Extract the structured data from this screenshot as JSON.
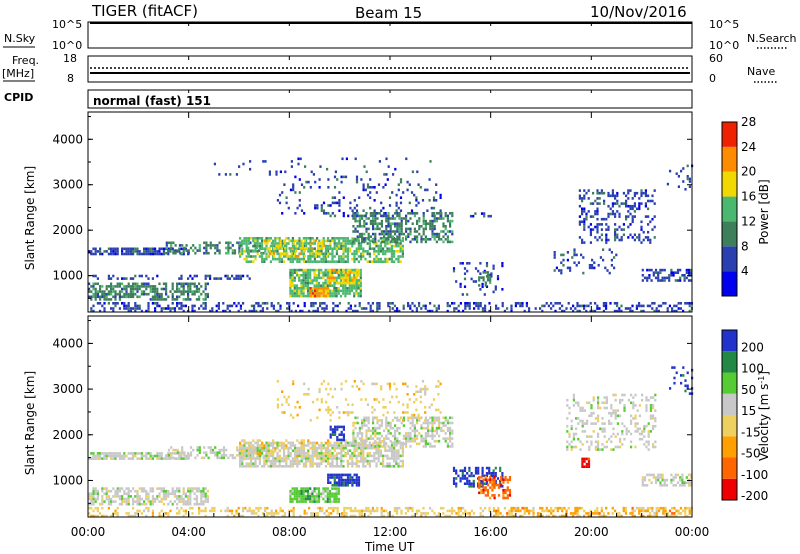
{
  "header": {
    "radar": "TIGER (fitACF)",
    "beam": "Beam 15",
    "date": "10/Nov/2016"
  },
  "top_panels": {
    "nsky_label": "N.Sky",
    "nsky_ticks": [
      "10^5",
      "10^0"
    ],
    "nsearch_label": "N.Search",
    "nsearch_ticks": [
      "10^5",
      "10^0"
    ],
    "freq_label": "Freq.",
    "freq_unit": "[MHz]",
    "freq_ticks": [
      "18",
      "8"
    ],
    "nave_label": "Nave",
    "nave_ticks": [
      "60",
      "0"
    ],
    "cpid_label": "CPID",
    "cpid_value": "normal (fast) 151"
  },
  "colors": {
    "power": [
      "#0000ee",
      "#2a3fb0",
      "#3d7f5a",
      "#4bb870",
      "#f0d800",
      "#ff8c00",
      "#ee2200"
    ],
    "velocity": [
      "#ee0000",
      "#ff6600",
      "#ffa000",
      "#eed060",
      "#c8c8c8",
      "#55cc33",
      "#228844",
      "#2233cc"
    ]
  },
  "chart_data": [
    {
      "type": "heatmap",
      "name": "power",
      "ylabel": "Slant Range [km]",
      "yticks": [
        "1000",
        "2000",
        "3000",
        "4000"
      ],
      "ylim": [
        200,
        4600
      ],
      "xlim_hours": [
        0,
        24
      ],
      "xticks": [
        "00:00",
        "04:00",
        "08:00",
        "12:00",
        "16:00",
        "20:00",
        "00:00"
      ],
      "colorbar": {
        "label": "Power [dB]",
        "range": [
          0,
          32
        ],
        "ticks": [
          "4",
          "8",
          "12",
          "16",
          "20",
          "24",
          "28"
        ]
      },
      "regions": [
        {
          "t0": 0,
          "t1": 24,
          "r0": 220,
          "r1": 420,
          "lvl": 1,
          "den": 0.38
        },
        {
          "t0": 0,
          "t1": 4.8,
          "r0": 480,
          "r1": 850,
          "lvl": 2,
          "den": 0.6
        },
        {
          "t0": 0,
          "t1": 6.5,
          "r0": 920,
          "r1": 1020,
          "lvl": 1,
          "den": 0.35
        },
        {
          "t0": 0,
          "t1": 4,
          "r0": 1450,
          "r1": 1620,
          "lvl": 1,
          "den": 0.75
        },
        {
          "t0": 3,
          "t1": 7,
          "r0": 1480,
          "r1": 1750,
          "lvl": 2,
          "den": 0.45
        },
        {
          "t0": 6,
          "t1": 12.5,
          "r0": 1300,
          "r1": 1850,
          "lvl": 3,
          "den": 0.7
        },
        {
          "t0": 7,
          "t1": 9.5,
          "r0": 1400,
          "r1": 1800,
          "lvl": 4,
          "den": 0.4
        },
        {
          "t0": 10.5,
          "t1": 14.5,
          "r0": 1750,
          "r1": 2400,
          "lvl": 2,
          "den": 0.55
        },
        {
          "t0": 7.5,
          "t1": 14,
          "r0": 2300,
          "r1": 3200,
          "lvl": 1,
          "den": 0.14
        },
        {
          "t0": 5,
          "t1": 14,
          "r0": 3200,
          "r1": 3600,
          "lvl": 1,
          "den": 0.07
        },
        {
          "t0": 8,
          "t1": 10.8,
          "r0": 550,
          "r1": 1150,
          "lvl": 3,
          "den": 0.85
        },
        {
          "t0": 8.8,
          "t1": 9.5,
          "r0": 550,
          "r1": 750,
          "lvl": 5,
          "den": 0.9
        },
        {
          "t0": 9.5,
          "t1": 10.8,
          "r0": 850,
          "r1": 1150,
          "lvl": 4,
          "den": 0.7
        },
        {
          "t0": 14.5,
          "t1": 16.5,
          "r0": 600,
          "r1": 1300,
          "lvl": 1,
          "den": 0.2
        },
        {
          "t0": 15.5,
          "t1": 16,
          "r0": 800,
          "r1": 1100,
          "lvl": 2,
          "den": 0.6
        },
        {
          "t0": 15,
          "t1": 16,
          "r0": 2300,
          "r1": 2450,
          "lvl": 1,
          "den": 0.4
        },
        {
          "t0": 19.5,
          "t1": 22.5,
          "r0": 1700,
          "r1": 2900,
          "lvl": 1,
          "den": 0.3
        },
        {
          "t0": 22,
          "t1": 24,
          "r0": 900,
          "r1": 1150,
          "lvl": 1,
          "den": 0.55
        },
        {
          "t0": 18.5,
          "t1": 21,
          "r0": 1050,
          "r1": 1600,
          "lvl": 1,
          "den": 0.18
        },
        {
          "t0": 23,
          "t1": 24,
          "r0": 2900,
          "r1": 3500,
          "lvl": 1,
          "den": 0.12
        }
      ]
    },
    {
      "type": "heatmap",
      "name": "velocity",
      "ylabel": "Slant Range [km]",
      "yticks": [
        "1000",
        "2000",
        "3000",
        "4000"
      ],
      "ylim": [
        200,
        4600
      ],
      "xlim_hours": [
        0,
        24
      ],
      "xticks": [
        "00:00",
        "04:00",
        "08:00",
        "12:00",
        "16:00",
        "20:00",
        "00:00"
      ],
      "xlabel": "Time UT",
      "colorbar": {
        "label": "Velocity [m s",
        "label_sup": "-1",
        "label_end": "]",
        "ticks": [
          "200",
          "100",
          "50",
          "15",
          "-15",
          "-50",
          "-100",
          "-200"
        ]
      },
      "regions": [
        {
          "t0": 0,
          "t1": 24,
          "r0": 220,
          "r1": 420,
          "lvl": 3,
          "den": 0.38
        },
        {
          "t0": 0,
          "t1": 4.8,
          "r0": 480,
          "r1": 850,
          "lvl": 4,
          "den": 0.6
        },
        {
          "t0": 0,
          "t1": 4,
          "r0": 1450,
          "r1": 1620,
          "lvl": 4,
          "den": 0.75
        },
        {
          "t0": 3,
          "t1": 7,
          "r0": 1480,
          "r1": 1750,
          "lvl": 4,
          "den": 0.45
        },
        {
          "t0": 6,
          "t1": 12.5,
          "r0": 1300,
          "r1": 1850,
          "lvl": 4,
          "den": 0.7
        },
        {
          "t0": 6,
          "t1": 11,
          "r0": 1400,
          "r1": 1900,
          "lvl": 3,
          "den": 0.25
        },
        {
          "t0": 10.5,
          "t1": 14.5,
          "r0": 1750,
          "r1": 2400,
          "lvl": 4,
          "den": 0.55
        },
        {
          "t0": 7.5,
          "t1": 14,
          "r0": 2300,
          "r1": 3200,
          "lvl": 3,
          "den": 0.14
        },
        {
          "t0": 8,
          "t1": 10,
          "r0": 550,
          "r1": 850,
          "lvl": 5,
          "den": 0.85
        },
        {
          "t0": 9.5,
          "t1": 10.8,
          "r0": 900,
          "r1": 1150,
          "lvl": 7,
          "den": 0.85
        },
        {
          "t0": 9.6,
          "t1": 10.2,
          "r0": 1900,
          "r1": 2200,
          "lvl": 7,
          "den": 0.6
        },
        {
          "t0": 14.5,
          "t1": 16.5,
          "r0": 900,
          "r1": 1300,
          "lvl": 7,
          "den": 0.45
        },
        {
          "t0": 15.5,
          "t1": 16.8,
          "r0": 600,
          "r1": 1100,
          "lvl": 1,
          "den": 0.5
        },
        {
          "t0": 19,
          "t1": 22.5,
          "r0": 1700,
          "r1": 2900,
          "lvl": 4,
          "den": 0.25
        },
        {
          "t0": 19.6,
          "t1": 19.9,
          "r0": 1300,
          "r1": 1500,
          "lvl": 0,
          "den": 0.8
        },
        {
          "t0": 22,
          "t1": 24,
          "r0": 900,
          "r1": 1150,
          "lvl": 4,
          "den": 0.55
        },
        {
          "t0": 16,
          "t1": 24,
          "r0": 220,
          "r1": 420,
          "lvl": 2,
          "den": 0.3
        },
        {
          "t0": 23,
          "t1": 24,
          "r0": 2900,
          "r1": 3500,
          "lvl": 7,
          "den": 0.15
        }
      ]
    }
  ]
}
